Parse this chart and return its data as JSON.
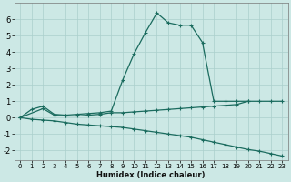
{
  "xlabel": "Humidex (Indice chaleur)",
  "background_color": "#cce8e5",
  "grid_color": "#aacfcc",
  "line_color": "#1a6b5e",
  "xlim": [
    -0.5,
    23.5
  ],
  "ylim": [
    -2.6,
    7.0
  ],
  "xticks": [
    0,
    1,
    2,
    3,
    4,
    5,
    6,
    7,
    8,
    9,
    10,
    11,
    12,
    13,
    14,
    15,
    16,
    17,
    18,
    19,
    20,
    21,
    22,
    23
  ],
  "yticks": [
    -2,
    -1,
    0,
    1,
    2,
    3,
    4,
    5,
    6
  ],
  "line1_x": [
    0,
    1,
    2,
    3,
    4,
    5,
    6,
    7,
    8,
    9,
    10,
    11,
    12,
    13,
    14,
    15,
    16,
    17,
    18,
    19,
    20,
    21,
    22,
    23
  ],
  "line1_y": [
    0.0,
    0.5,
    0.7,
    0.2,
    0.15,
    0.2,
    0.25,
    0.3,
    0.4,
    2.3,
    3.9,
    5.2,
    6.4,
    5.8,
    5.65,
    5.65,
    4.6,
    1.0,
    1.0,
    1.0,
    1.0,
    1.0,
    1.0,
    1.0
  ],
  "line2_x": [
    0,
    2,
    3,
    4,
    5,
    6,
    7,
    8,
    9,
    10,
    11,
    12,
    13,
    14,
    15,
    16,
    17,
    18,
    19,
    20
  ],
  "line2_y": [
    0.0,
    0.55,
    0.15,
    0.1,
    0.1,
    0.15,
    0.2,
    0.3,
    0.3,
    0.35,
    0.4,
    0.45,
    0.5,
    0.55,
    0.6,
    0.65,
    0.7,
    0.75,
    0.8,
    1.0
  ],
  "line3_x": [
    0,
    1,
    2,
    3,
    4,
    5,
    6,
    7,
    8,
    9,
    10,
    11,
    12,
    13,
    14,
    15,
    16,
    17,
    18,
    19,
    20,
    21,
    22,
    23
  ],
  "line3_y": [
    0.0,
    -0.1,
    -0.15,
    -0.2,
    -0.3,
    -0.4,
    -0.45,
    -0.5,
    -0.55,
    -0.6,
    -0.7,
    -0.8,
    -0.9,
    -1.0,
    -1.1,
    -1.2,
    -1.35,
    -1.5,
    -1.65,
    -1.8,
    -1.95,
    -2.05,
    -2.2,
    -2.35
  ]
}
